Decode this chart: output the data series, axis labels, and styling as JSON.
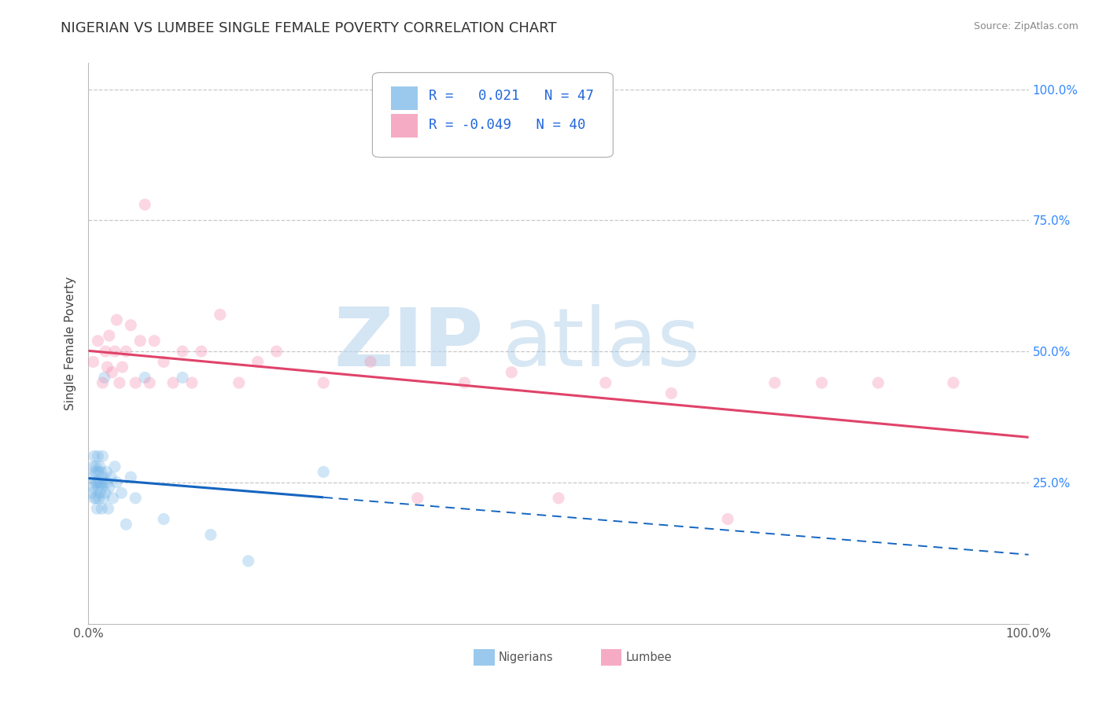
{
  "title": "NIGERIAN VS LUMBEE SINGLE FEMALE POVERTY CORRELATION CHART",
  "source": "Source: ZipAtlas.com",
  "ylabel": "Single Female Poverty",
  "xlim": [
    0.0,
    1.0
  ],
  "ylim": [
    -0.02,
    1.05
  ],
  "nigerian_R": 0.021,
  "nigerian_N": 47,
  "lumbee_R": -0.049,
  "lumbee_N": 40,
  "nigerian_color": "#7ab8e8",
  "lumbee_color": "#f48fb1",
  "nigerian_line_color": "#1565c0",
  "lumbee_line_color": "#e0436a",
  "background_color": "#ffffff",
  "grid_color": "#c8c8c8",
  "title_fontsize": 13,
  "axis_label_fontsize": 11,
  "tick_fontsize": 11,
  "marker_size": 120,
  "marker_alpha": 0.35,
  "line_width": 2.2,
  "nigerian_x": [
    0.003,
    0.004,
    0.005,
    0.005,
    0.006,
    0.006,
    0.007,
    0.007,
    0.008,
    0.008,
    0.009,
    0.009,
    0.01,
    0.01,
    0.01,
    0.011,
    0.011,
    0.012,
    0.012,
    0.013,
    0.013,
    0.014,
    0.014,
    0.015,
    0.015,
    0.016,
    0.016,
    0.017,
    0.018,
    0.019,
    0.02,
    0.021,
    0.022,
    0.024,
    0.026,
    0.028,
    0.03,
    0.035,
    0.04,
    0.045,
    0.05,
    0.06,
    0.08,
    0.1,
    0.13,
    0.17,
    0.25
  ],
  "nigerian_y": [
    0.23,
    0.26,
    0.24,
    0.28,
    0.22,
    0.3,
    0.25,
    0.27,
    0.22,
    0.28,
    0.25,
    0.2,
    0.24,
    0.27,
    0.3,
    0.22,
    0.25,
    0.23,
    0.28,
    0.25,
    0.27,
    0.24,
    0.2,
    0.26,
    0.3,
    0.22,
    0.25,
    0.45,
    0.23,
    0.27,
    0.25,
    0.2,
    0.24,
    0.26,
    0.22,
    0.28,
    0.25,
    0.23,
    0.17,
    0.26,
    0.22,
    0.45,
    0.18,
    0.45,
    0.15,
    0.1,
    0.27
  ],
  "lumbee_x": [
    0.005,
    0.01,
    0.015,
    0.018,
    0.02,
    0.022,
    0.025,
    0.028,
    0.03,
    0.033,
    0.036,
    0.04,
    0.045,
    0.05,
    0.055,
    0.06,
    0.065,
    0.07,
    0.08,
    0.09,
    0.1,
    0.11,
    0.12,
    0.14,
    0.16,
    0.18,
    0.2,
    0.25,
    0.3,
    0.35,
    0.4,
    0.45,
    0.5,
    0.55,
    0.62,
    0.68,
    0.73,
    0.78,
    0.84,
    0.92
  ],
  "lumbee_y": [
    0.48,
    0.52,
    0.44,
    0.5,
    0.47,
    0.53,
    0.46,
    0.5,
    0.56,
    0.44,
    0.47,
    0.5,
    0.55,
    0.44,
    0.52,
    0.78,
    0.44,
    0.52,
    0.48,
    0.44,
    0.5,
    0.44,
    0.5,
    0.57,
    0.44,
    0.48,
    0.5,
    0.44,
    0.48,
    0.22,
    0.44,
    0.46,
    0.22,
    0.44,
    0.42,
    0.18,
    0.44,
    0.44,
    0.44,
    0.44
  ],
  "nig_line_x_solid_end": 0.25,
  "watermark_zip_color": "#b8d5ee",
  "watermark_atlas_color": "#90bce0"
}
